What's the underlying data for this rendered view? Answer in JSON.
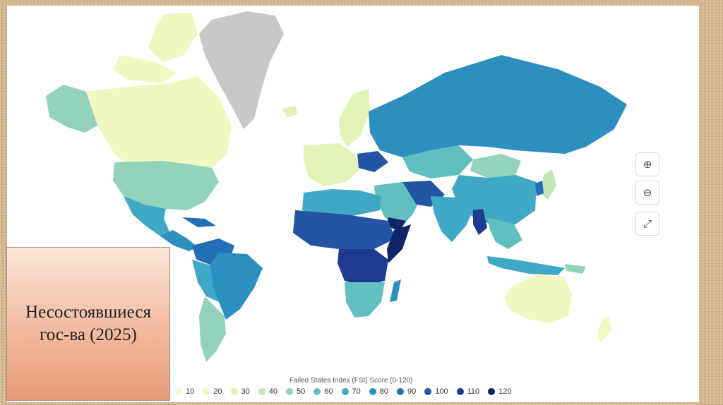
{
  "caption": "Несостоявшиеся\nгос-ва (2025)",
  "legend": {
    "title": "Failed States Index (FSI) Score (0-120)",
    "items": [
      {
        "label": "10",
        "color": "#f7fad0"
      },
      {
        "label": "20",
        "color": "#f1f7c0"
      },
      {
        "label": "30",
        "color": "#e3f2b6"
      },
      {
        "label": "40",
        "color": "#c2e5b5"
      },
      {
        "label": "50",
        "color": "#93d2bb"
      },
      {
        "label": "60",
        "color": "#62bfc1"
      },
      {
        "label": "70",
        "color": "#3fa8c6"
      },
      {
        "label": "80",
        "color": "#2c8fc0"
      },
      {
        "label": "90",
        "color": "#2170b5"
      },
      {
        "label": "100",
        "color": "#2355a4"
      },
      {
        "label": "110",
        "color": "#1d3b8f"
      },
      {
        "label": "120",
        "color": "#0f2566"
      }
    ]
  },
  "controls": {
    "zoom_in": "⊕",
    "zoom_out": "⊖",
    "fullscreen": "⤢"
  },
  "no_data_color": "#c8c8c8"
}
